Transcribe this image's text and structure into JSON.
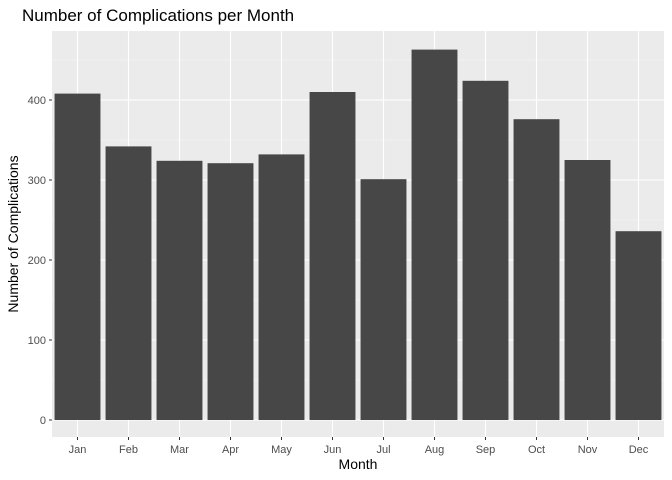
{
  "chart_data": {
    "type": "bar",
    "title": "Number of Complications per Month",
    "xlabel": "Month",
    "ylabel": "Number of Complications",
    "categories": [
      "Jan",
      "Feb",
      "Mar",
      "Apr",
      "May",
      "Jun",
      "Jul",
      "Aug",
      "Sep",
      "Oct",
      "Nov",
      "Dec"
    ],
    "values": [
      408,
      342,
      324,
      321,
      332,
      410,
      301,
      463,
      424,
      376,
      325,
      236
    ],
    "ylim": [
      0,
      485
    ],
    "yticks": [
      0,
      100,
      200,
      300,
      400
    ],
    "grid": true,
    "legend": "none",
    "colors": {
      "bar": "#474747",
      "panel": "#ebebeb",
      "grid_major": "#ffffff",
      "grid_minor": "#f5f5f5",
      "tick_label": "#4d4d4d",
      "text": "#000000"
    }
  }
}
